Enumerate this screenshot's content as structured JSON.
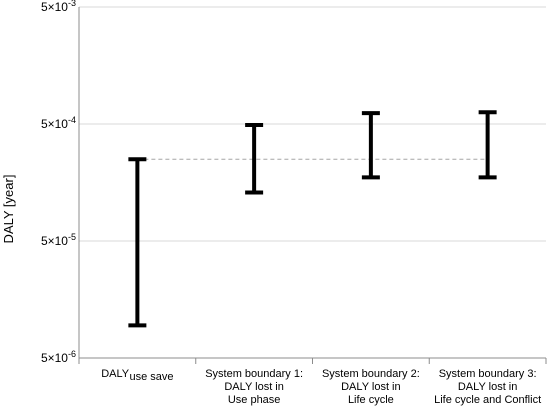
{
  "chart_data": {
    "type": "errorbar",
    "ylabel": "DALY [year]",
    "yscale": "log",
    "ylim": [
      5e-06,
      0.005
    ],
    "grid": true,
    "y_ticks": [
      {
        "value": 0.005,
        "mantissa": "5×10",
        "exp": "-3"
      },
      {
        "value": 0.0005,
        "mantissa": "5×10",
        "exp": "-4"
      },
      {
        "value": 5e-05,
        "mantissa": "5×10",
        "exp": "-5"
      },
      {
        "value": 5e-06,
        "mantissa": "5×10",
        "exp": "-6"
      }
    ],
    "categories": [
      {
        "lines": [
          "DALY"
        ],
        "subscript": "use save"
      },
      {
        "lines": [
          "System boundary 1:",
          "DALY lost in",
          "Use phase"
        ]
      },
      {
        "lines": [
          "System boundary 2:",
          "DALY lost in",
          "Life cycle"
        ]
      },
      {
        "lines": [
          "System boundary 3:",
          "DALY lost in",
          "Life cycle and Conflict"
        ]
      }
    ],
    "ranges": [
      {
        "low": 9.5e-06,
        "high": 0.00025
      },
      {
        "low": 0.00013,
        "high": 0.00049
      },
      {
        "low": 0.000175,
        "high": 0.00062
      },
      {
        "low": 0.000175,
        "high": 0.00063
      }
    ],
    "reference_line": {
      "value": 0.00025,
      "style": "dashed"
    }
  }
}
